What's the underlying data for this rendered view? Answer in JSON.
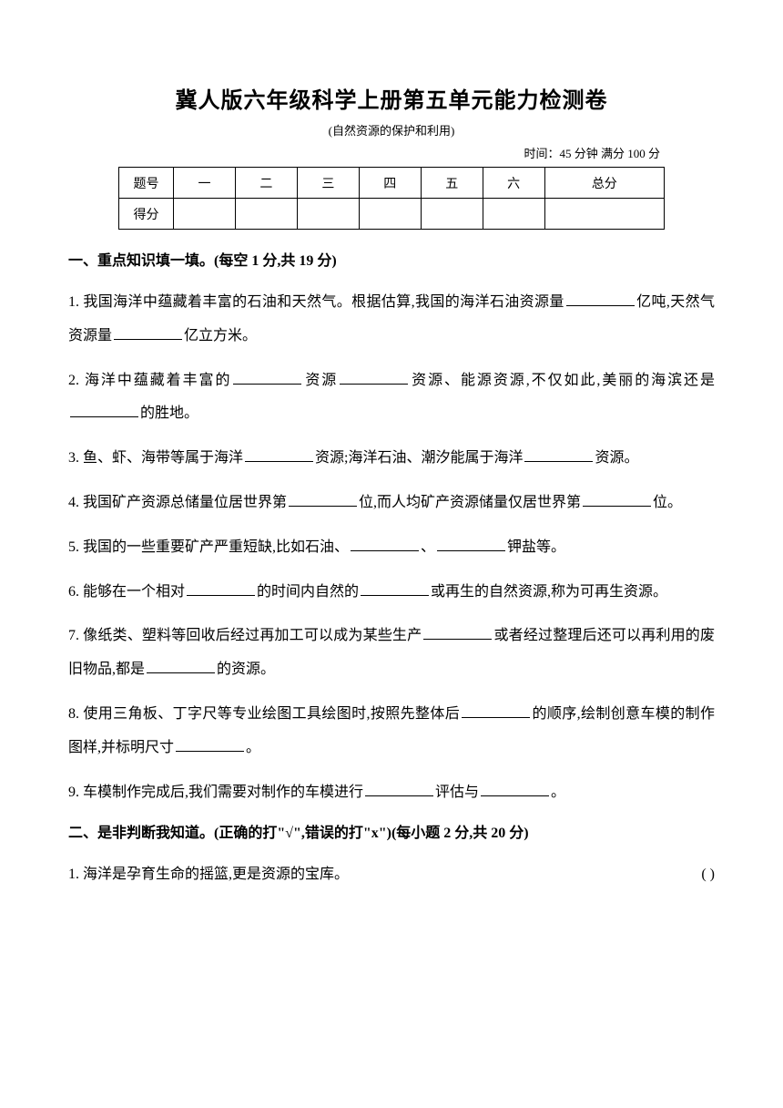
{
  "title": "冀人版六年级科学上册第五单元能力检测卷",
  "subtitle": "(自然资源的保护和利用)",
  "time_info": "时间：45 分钟   满分 100 分",
  "score_table": {
    "row1": [
      "题号",
      "一",
      "二",
      "三",
      "四",
      "五",
      "六",
      "总分"
    ],
    "row2_label": "得分"
  },
  "section1": {
    "header": "一、重点知识填一填。(每空 1 分,共 19 分)",
    "q1_a": "1. 我国海洋中蕴藏着丰富的石油和天然气。根据估算,我国的海洋石油资源量",
    "q1_b": "亿吨,天然气资源量",
    "q1_c": "亿立方米。",
    "q2_a": "2. 海洋中蕴藏着丰富的",
    "q2_b": "资源",
    "q2_c": "资源、能源资源,不仅如此,美丽的海滨还是",
    "q2_d": "的胜地。",
    "q3_a": "3. 鱼、虾、海带等属于海洋",
    "q3_b": "资源;海洋石油、潮汐能属于海洋",
    "q3_c": "资源。",
    "q4_a": "4. 我国矿产资源总储量位居世界第",
    "q4_b": "位,而人均矿产资源储量仅居世界第",
    "q4_c": "位。",
    "q5_a": "5. 我国的一些重要矿产严重短缺,比如石油、",
    "q5_b": "、",
    "q5_c": "钾盐等。",
    "q6_a": "6. 能够在一个相对",
    "q6_b": "的时间内自然的",
    "q6_c": "或再生的自然资源,称为可再生资源。",
    "q7_a": "7. 像纸类、塑料等回收后经过再加工可以成为某些生产",
    "q7_b": "或者经过整理后还可以再利用的废旧物品,都是",
    "q7_c": "的资源。",
    "q8_a": "8. 使用三角板、丁字尺等专业绘图工具绘图时,按照先整体后",
    "q8_b": "的顺序,绘制创意车模的制作图样,并标明尺寸",
    "q8_c": "。",
    "q9_a": "9. 车模制作完成后,我们需要对制作的车模进行",
    "q9_b": "评估与",
    "q9_c": "。"
  },
  "section2": {
    "header": "二、是非判断我知道。(正确的打\"√\",错误的打\"x\")(每小题 2 分,共 20 分)",
    "q1": "1. 海洋是孕育生命的摇篮,更是资源的宝库。",
    "paren": "(    )"
  }
}
